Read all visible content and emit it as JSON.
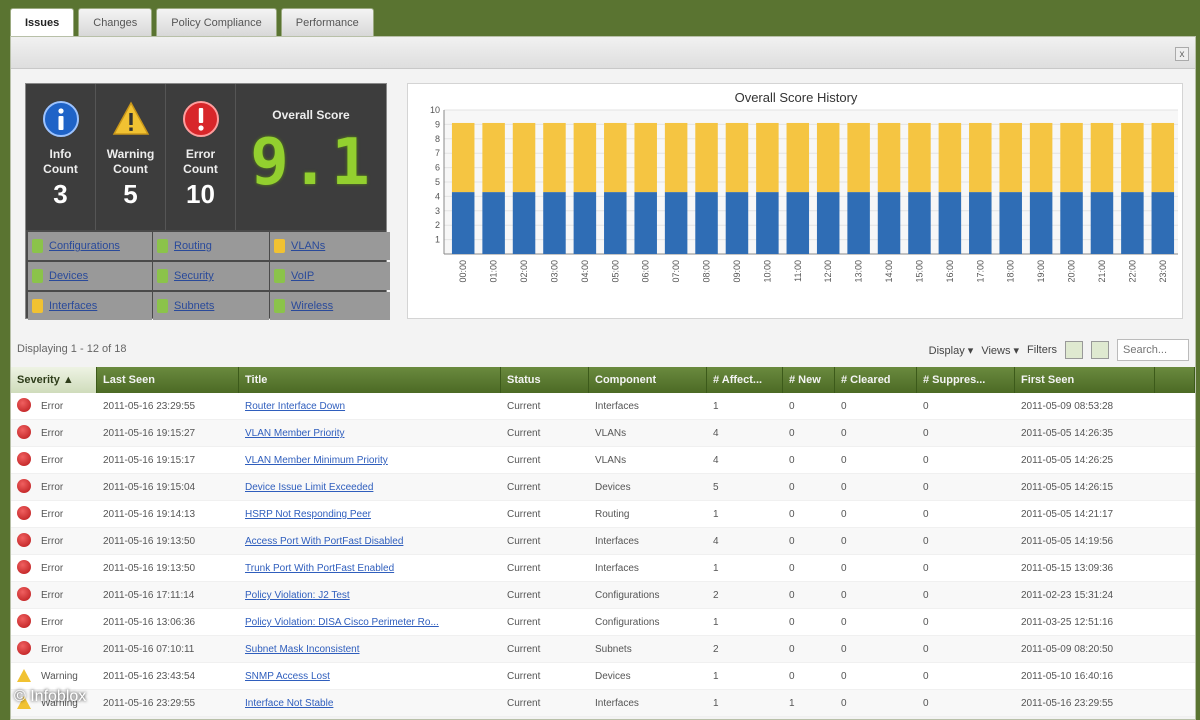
{
  "tabs": [
    {
      "label": "Issues",
      "active": true
    },
    {
      "label": "Changes",
      "active": false
    },
    {
      "label": "Policy Compliance",
      "active": false
    },
    {
      "label": "Performance",
      "active": false
    }
  ],
  "close_label": "x",
  "dashboard": {
    "info": {
      "label_line1": "Info",
      "label_line2": "Count",
      "value": "3"
    },
    "warning": {
      "label_line1": "Warning",
      "label_line2": "Count",
      "value": "5"
    },
    "error": {
      "label_line1": "Error",
      "label_line2": "Count",
      "value": "10"
    },
    "score": {
      "label": "Overall Score",
      "value": "9.1"
    },
    "categories": [
      {
        "name": "Configurations",
        "color": "#8bc34a"
      },
      {
        "name": "Routing",
        "color": "#8bc34a"
      },
      {
        "name": "VLANs",
        "color": "#f1c232"
      },
      {
        "name": "Devices",
        "color": "#8bc34a"
      },
      {
        "name": "Security",
        "color": "#8bc34a"
      },
      {
        "name": "VoIP",
        "color": "#8bc34a"
      },
      {
        "name": "Interfaces",
        "color": "#f1c232"
      },
      {
        "name": "Subnets",
        "color": "#8bc34a"
      },
      {
        "name": "Wireless",
        "color": "#8bc34a"
      }
    ]
  },
  "chart_data": {
    "type": "bar",
    "title": "Overall Score History",
    "categories": [
      "00:00",
      "01:00",
      "02:00",
      "03:00",
      "04:00",
      "05:00",
      "06:00",
      "07:00",
      "08:00",
      "09:00",
      "10:00",
      "11:00",
      "12:00",
      "13:00",
      "14:00",
      "15:00",
      "16:00",
      "17:00",
      "18:00",
      "19:00",
      "20:00",
      "21:00",
      "22:00",
      "23:00"
    ],
    "stacked": true,
    "series": [
      {
        "values": [
          4.3,
          4.3,
          4.3,
          4.3,
          4.3,
          4.3,
          4.3,
          4.3,
          4.3,
          4.3,
          4.3,
          4.3,
          4.3,
          4.3,
          4.3,
          4.3,
          4.3,
          4.3,
          4.3,
          4.3,
          4.3,
          4.3,
          4.3,
          4.3
        ],
        "color": "#2f6db5"
      },
      {
        "values": [
          4.8,
          4.8,
          4.8,
          4.8,
          4.8,
          4.8,
          4.8,
          4.8,
          4.8,
          4.8,
          4.8,
          4.8,
          4.8,
          4.8,
          4.8,
          4.8,
          4.8,
          4.8,
          4.8,
          4.8,
          4.8,
          4.8,
          4.8,
          4.8
        ],
        "color": "#f5c542"
      }
    ],
    "ylim": [
      0,
      10
    ],
    "yticks": [
      "1",
      "2",
      "3",
      "4",
      "5",
      "6",
      "7",
      "8",
      "9",
      "10"
    ],
    "grid": true
  },
  "list": {
    "displaying": "Displaying 1 - 12 of 18",
    "display_label": "Display ▾",
    "views_label": "Views ▾",
    "filters_label": "Filters",
    "search_placeholder": "Search..."
  },
  "columns": [
    "Severity ▲",
    "Last Seen",
    "Title",
    "Status",
    "Component",
    "# Affect...",
    "# New",
    "# Cleared",
    "# Suppres...",
    "First Seen"
  ],
  "rows": [
    {
      "severity": "Error",
      "last_seen": "2011-05-16 23:29:55",
      "title": "Router Interface Down",
      "status": "Current",
      "component": "Interfaces",
      "affected": "1",
      "new": "0",
      "cleared": "0",
      "suppressed": "0",
      "first_seen": "2011-05-09 08:53:28"
    },
    {
      "severity": "Error",
      "last_seen": "2011-05-16 19:15:27",
      "title": "VLAN Member Priority",
      "status": "Current",
      "component": "VLANs",
      "affected": "4",
      "new": "0",
      "cleared": "0",
      "suppressed": "0",
      "first_seen": "2011-05-05 14:26:35"
    },
    {
      "severity": "Error",
      "last_seen": "2011-05-16 19:15:17",
      "title": "VLAN Member Minimum Priority",
      "status": "Current",
      "component": "VLANs",
      "affected": "4",
      "new": "0",
      "cleared": "0",
      "suppressed": "0",
      "first_seen": "2011-05-05 14:26:25"
    },
    {
      "severity": "Error",
      "last_seen": "2011-05-16 19:15:04",
      "title": "Device Issue Limit Exceeded",
      "status": "Current",
      "component": "Devices",
      "affected": "5",
      "new": "0",
      "cleared": "0",
      "suppressed": "0",
      "first_seen": "2011-05-05 14:26:15"
    },
    {
      "severity": "Error",
      "last_seen": "2011-05-16 19:14:13",
      "title": "HSRP Not Responding Peer",
      "status": "Current",
      "component": "Routing",
      "affected": "1",
      "new": "0",
      "cleared": "0",
      "suppressed": "0",
      "first_seen": "2011-05-05 14:21:17"
    },
    {
      "severity": "Error",
      "last_seen": "2011-05-16 19:13:50",
      "title": "Access Port With PortFast Disabled",
      "status": "Current",
      "component": "Interfaces",
      "affected": "4",
      "new": "0",
      "cleared": "0",
      "suppressed": "0",
      "first_seen": "2011-05-05 14:19:56"
    },
    {
      "severity": "Error",
      "last_seen": "2011-05-16 19:13:50",
      "title": "Trunk Port With PortFast Enabled",
      "status": "Current",
      "component": "Interfaces",
      "affected": "1",
      "new": "0",
      "cleared": "0",
      "suppressed": "0",
      "first_seen": "2011-05-15 13:09:36"
    },
    {
      "severity": "Error",
      "last_seen": "2011-05-16 17:11:14",
      "title": "Policy Violation: J2 Test",
      "status": "Current",
      "component": "Configurations",
      "affected": "2",
      "new": "0",
      "cleared": "0",
      "suppressed": "0",
      "first_seen": "2011-02-23 15:31:24"
    },
    {
      "severity": "Error",
      "last_seen": "2011-05-16 13:06:36",
      "title": "Policy Violation: DISA Cisco Perimeter Ro...",
      "status": "Current",
      "component": "Configurations",
      "affected": "1",
      "new": "0",
      "cleared": "0",
      "suppressed": "0",
      "first_seen": "2011-03-25 12:51:16"
    },
    {
      "severity": "Error",
      "last_seen": "2011-05-16 07:10:11",
      "title": "Subnet Mask Inconsistent",
      "status": "Current",
      "component": "Subnets",
      "affected": "2",
      "new": "0",
      "cleared": "0",
      "suppressed": "0",
      "first_seen": "2011-05-09 08:20:50"
    },
    {
      "severity": "Warning",
      "last_seen": "2011-05-16 23:43:54",
      "title": "SNMP Access Lost",
      "status": "Current",
      "component": "Devices",
      "affected": "1",
      "new": "0",
      "cleared": "0",
      "suppressed": "0",
      "first_seen": "2011-05-10 16:40:16"
    },
    {
      "severity": "Warning",
      "last_seen": "2011-05-16 23:29:55",
      "title": "Interface Not Stable",
      "status": "Current",
      "component": "Interfaces",
      "affected": "1",
      "new": "1",
      "cleared": "0",
      "suppressed": "0",
      "first_seen": "2011-05-16 23:29:55"
    }
  ],
  "watermark": "© Infoblox"
}
